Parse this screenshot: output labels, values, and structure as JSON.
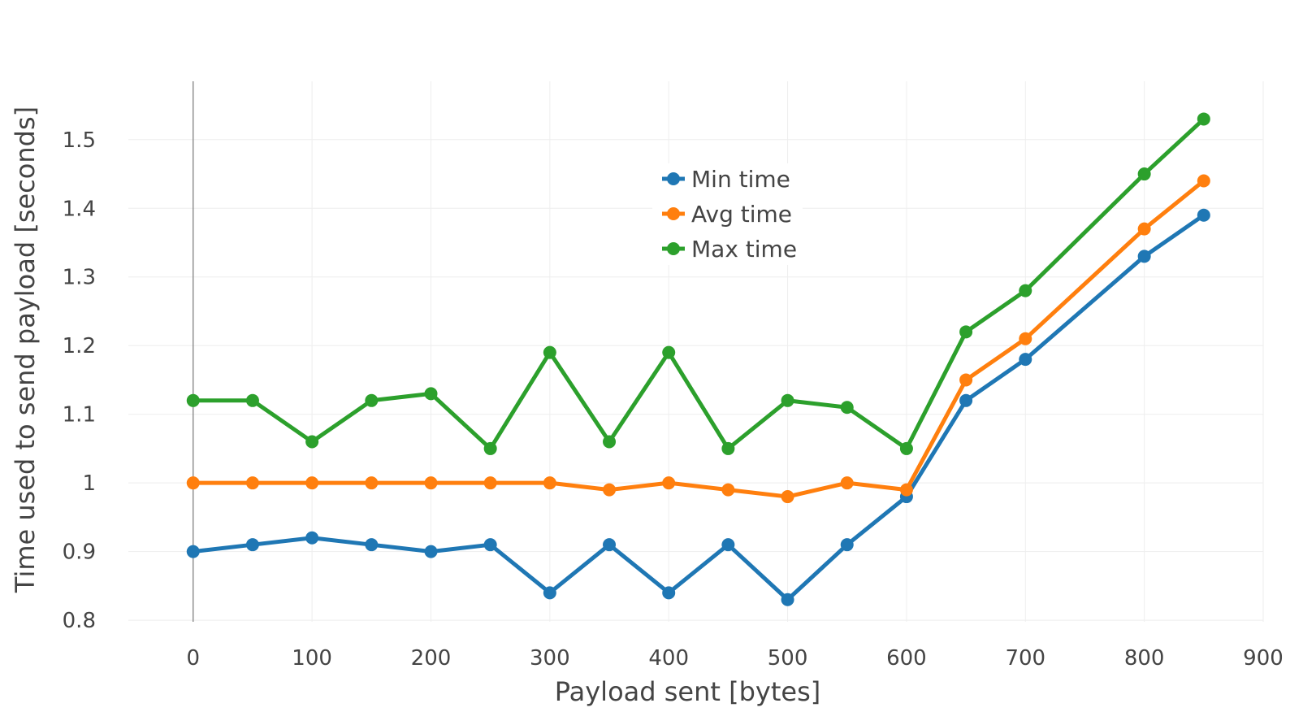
{
  "chart_data": {
    "type": "line",
    "title": "",
    "xlabel": "Payload sent [bytes]",
    "ylabel": "Time used to send payload [seconds]",
    "xlim": [
      -75,
      900
    ],
    "ylim": [
      0.78,
      1.585
    ],
    "xticks": [
      0,
      100,
      200,
      300,
      400,
      500,
      600,
      700,
      800,
      900
    ],
    "yticks": [
      0.8,
      0.9,
      1.0,
      1.1,
      1.2,
      1.3,
      1.4,
      1.5
    ],
    "ytick_labels": [
      "0.8",
      "0.9",
      "1",
      "1.1",
      "1.2",
      "1.3",
      "1.4",
      "1.5"
    ],
    "grid": true,
    "legend_position": "top-center",
    "x": [
      0,
      50,
      100,
      150,
      200,
      250,
      300,
      350,
      400,
      450,
      500,
      550,
      600,
      650,
      700,
      800,
      850
    ],
    "series": [
      {
        "name": "Min time",
        "color": "#1f77b4",
        "values": [
          0.9,
          0.91,
          0.92,
          0.91,
          0.9,
          0.91,
          0.84,
          0.91,
          0.84,
          0.91,
          0.83,
          0.91,
          0.98,
          1.12,
          1.18,
          1.33,
          1.39
        ]
      },
      {
        "name": "Avg time",
        "color": "#ff7f0e",
        "values": [
          1.0,
          1.0,
          1.0,
          1.0,
          1.0,
          1.0,
          1.0,
          0.99,
          1.0,
          0.99,
          0.98,
          1.0,
          0.99,
          1.15,
          1.21,
          1.37,
          1.44
        ]
      },
      {
        "name": "Max time",
        "color": "#2ca02c",
        "values": [
          1.12,
          1.12,
          1.06,
          1.12,
          1.13,
          1.05,
          1.19,
          1.06,
          1.19,
          1.05,
          1.12,
          1.11,
          1.05,
          1.22,
          1.28,
          1.45,
          1.53
        ]
      }
    ]
  }
}
